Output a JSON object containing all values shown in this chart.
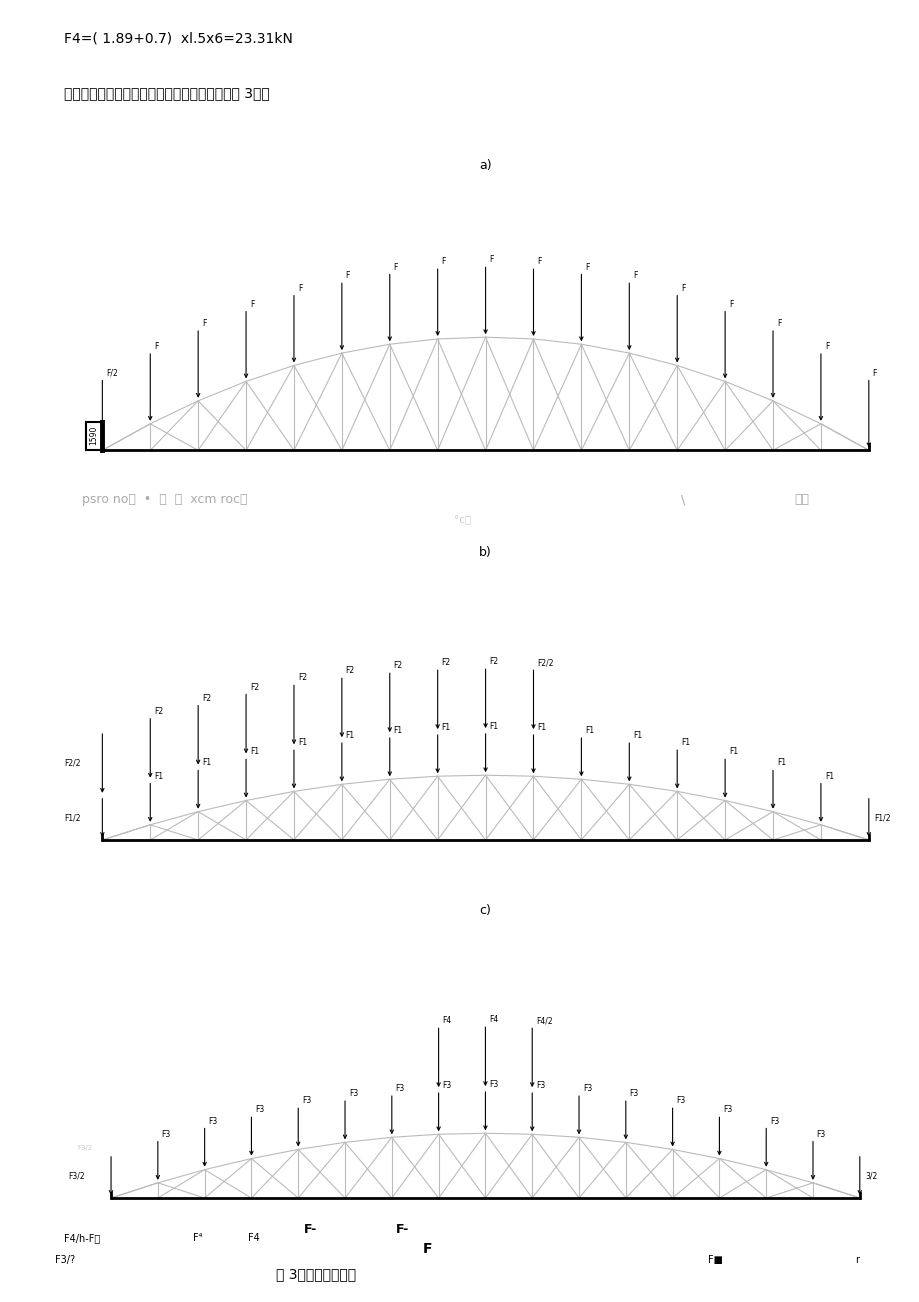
{
  "title_line1": "F4=( 1.89+0.7)  xl.5x6=23.31kN",
  "title_line2": "屋架在上述三种荷载组合作用下的计算简图如图 3所示",
  "fig_caption": "图 3：荷载计算简图",
  "label_a": "a)",
  "label_b": "b)",
  "label_c": "c)",
  "n_panels": 16,
  "span": 16.0,
  "rise_a": 1.4,
  "rise_bc": 1.1,
  "truss_color": "#bbbbbb",
  "arrow_color": "#000000",
  "background_color": "#ffffff",
  "watermark1": "psro no）  •  ：  ：  xcm roc：",
  "watermark2": "\\",
  "watermark3": "药刊",
  "watermark4": "°c（",
  "bottom_notes_line1": "F4/h-F：    F⁴   F4    F-         F-",
  "bottom_note_F": "F",
  "bottom_note_F3": "F3/?",
  "bottom_note_Fe": "F■",
  "bottom_note_r": "r"
}
